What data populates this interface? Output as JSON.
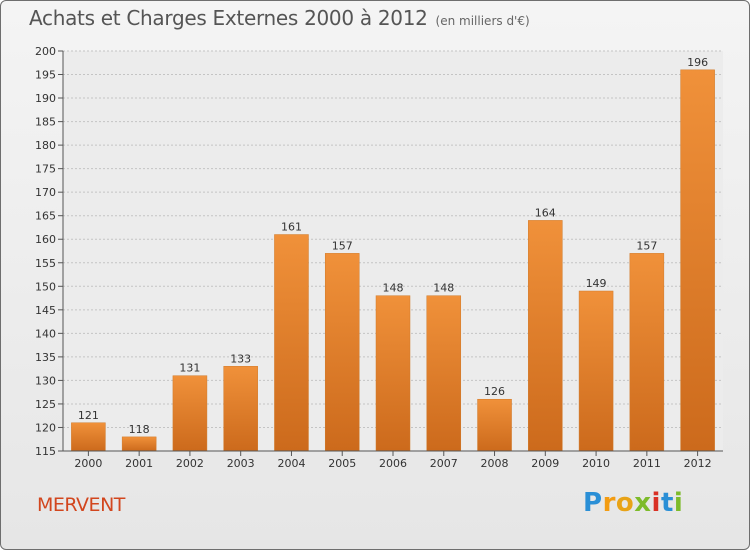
{
  "chart_data": {
    "type": "bar",
    "title": "Achats et Charges Externes 2000 à 2012",
    "subtitle": "(en milliers d'€)",
    "categories": [
      "2000",
      "2001",
      "2002",
      "2003",
      "2004",
      "2005",
      "2006",
      "2007",
      "2008",
      "2009",
      "2010",
      "2011",
      "2012"
    ],
    "values": [
      121,
      118,
      131,
      133,
      161,
      157,
      148,
      148,
      126,
      164,
      149,
      157,
      196
    ],
    "ylim": [
      115,
      200
    ],
    "yticks": [
      115,
      120,
      125,
      130,
      135,
      140,
      145,
      150,
      155,
      160,
      165,
      170,
      175,
      180,
      185,
      190,
      195,
      200
    ],
    "grid": true,
    "bar_color": "#f0913a",
    "bar_color_dark": "#cc6a1c"
  },
  "footer": {
    "commune": "MERVENT",
    "logo_letters": [
      "P",
      "r",
      "o",
      "x",
      "i",
      "t",
      "i"
    ],
    "logo_colors": [
      "#2a8fd6",
      "#f39c12",
      "#e8a317",
      "#7dbb2a",
      "#d93025",
      "#2a8fd6",
      "#7dbb2a"
    ]
  }
}
